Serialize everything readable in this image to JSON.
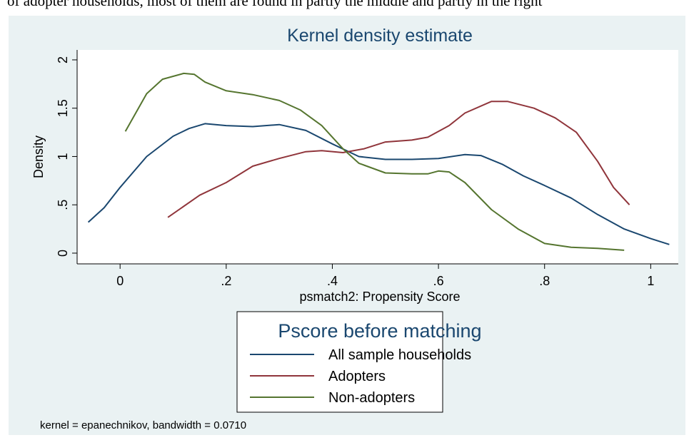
{
  "header_text": "of adopter households, most of them are found in partly the middle and partly in the right",
  "chart_data": {
    "type": "line",
    "title": "Kernel density estimate",
    "x_label": "psmatch2: Propensity Score",
    "y_label": "Density",
    "xlim": [
      -0.081,
      1.052
    ],
    "ylim": [
      -0.111,
      2.103
    ],
    "xticks": [
      0,
      {
        "value": 0.2,
        "label": ".2"
      },
      {
        "value": 0.4,
        "label": ".4"
      },
      {
        "value": 0.6,
        "label": ".6"
      },
      {
        "value": 0.8,
        "label": ".8"
      },
      1
    ],
    "yticks": [
      0,
      {
        "value": 0.5,
        "label": ".5"
      },
      1,
      {
        "value": 1.5,
        "label": "1.5"
      },
      2
    ],
    "legend_title": "Pscore before matching",
    "note": "kernel = epanechnikov, bandwidth = 0.0710",
    "series": [
      {
        "name": "All sample households",
        "color": "#1a476f",
        "x": [
          -0.06,
          -0.03,
          0,
          0.05,
          0.1,
          0.13,
          0.16,
          0.2,
          0.25,
          0.3,
          0.35,
          0.4,
          0.45,
          0.5,
          0.55,
          0.6,
          0.65,
          0.68,
          0.72,
          0.76,
          0.8,
          0.85,
          0.9,
          0.95,
          1.0,
          1.035
        ],
        "values": [
          0.32,
          0.47,
          0.68,
          1.0,
          1.21,
          1.29,
          1.34,
          1.32,
          1.31,
          1.33,
          1.27,
          1.13,
          1.0,
          0.97,
          0.97,
          0.98,
          1.02,
          1.01,
          0.92,
          0.8,
          0.7,
          0.57,
          0.4,
          0.25,
          0.15,
          0.09
        ]
      },
      {
        "name": "Adopters",
        "color": "#90353b",
        "x": [
          0.09,
          0.15,
          0.2,
          0.25,
          0.3,
          0.35,
          0.38,
          0.42,
          0.46,
          0.5,
          0.55,
          0.58,
          0.62,
          0.65,
          0.7,
          0.73,
          0.78,
          0.82,
          0.86,
          0.9,
          0.93,
          0.96
        ],
        "values": [
          0.37,
          0.6,
          0.73,
          0.9,
          0.98,
          1.05,
          1.06,
          1.04,
          1.08,
          1.15,
          1.17,
          1.2,
          1.32,
          1.45,
          1.57,
          1.57,
          1.5,
          1.4,
          1.25,
          0.95,
          0.68,
          0.5
        ]
      },
      {
        "name": "Non-adopters",
        "color": "#55752f",
        "x": [
          0.01,
          0.05,
          0.08,
          0.12,
          0.14,
          0.16,
          0.2,
          0.25,
          0.3,
          0.34,
          0.38,
          0.42,
          0.45,
          0.5,
          0.55,
          0.58,
          0.6,
          0.62,
          0.65,
          0.7,
          0.75,
          0.8,
          0.85,
          0.9,
          0.95
        ],
        "values": [
          1.26,
          1.65,
          1.8,
          1.86,
          1.85,
          1.77,
          1.68,
          1.64,
          1.58,
          1.48,
          1.32,
          1.08,
          0.93,
          0.83,
          0.82,
          0.82,
          0.85,
          0.84,
          0.73,
          0.45,
          0.25,
          0.1,
          0.06,
          0.05,
          0.03
        ]
      }
    ]
  }
}
